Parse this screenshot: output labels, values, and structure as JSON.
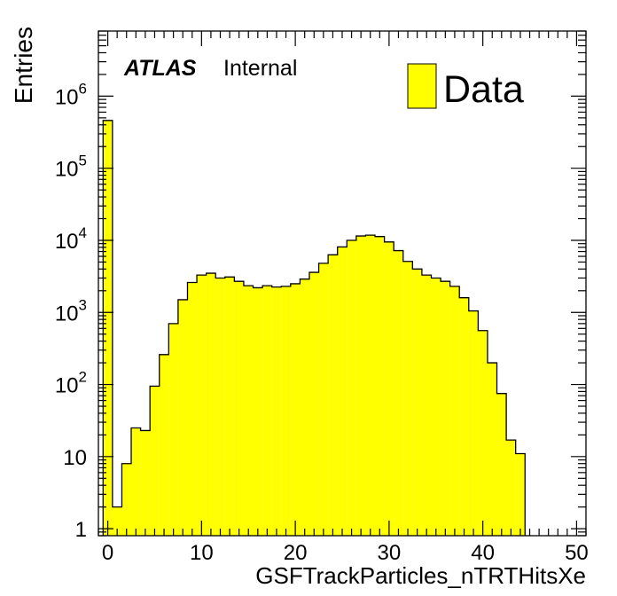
{
  "chart_data": {
    "type": "bar",
    "xlabel": "GSFTrackParticles_nTRTHitsXe",
    "ylabel": "Entries",
    "xlim": [
      -1,
      51
    ],
    "ylim": [
      0.8,
      8000000
    ],
    "log_y": true,
    "grid": false,
    "legend": {
      "position": "top-right",
      "entries": [
        "Data"
      ]
    },
    "annotations": {
      "atlas": "ATLAS",
      "status": "Internal"
    },
    "x_ticks": [
      "0",
      "10",
      "20",
      "30",
      "40",
      "50"
    ],
    "y_ticks": [
      {
        "label": "1",
        "value": 1
      },
      {
        "label": "10",
        "value": 10
      },
      {
        "label": "10",
        "exp": "2",
        "value": 100
      },
      {
        "label": "10",
        "exp": "3",
        "value": 1000
      },
      {
        "label": "10",
        "exp": "4",
        "value": 10000
      },
      {
        "label": "10",
        "exp": "5",
        "value": 100000
      },
      {
        "label": "10",
        "exp": "6",
        "value": 1000000
      }
    ],
    "bin_edges": [
      -0.5,
      44.5
    ],
    "bin_width": 1,
    "series": [
      {
        "name": "Data",
        "color": "#ffff00",
        "values": [
          460000,
          2,
          8,
          25,
          23,
          95,
          260,
          700,
          1500,
          2600,
          3300,
          3500,
          3000,
          3100,
          2700,
          2350,
          2200,
          2350,
          2250,
          2300,
          2500,
          2900,
          3600,
          4800,
          6300,
          8100,
          10000,
          11500,
          11800,
          11300,
          9500,
          7200,
          5100,
          4000,
          3300,
          3000,
          2700,
          2300,
          1600,
          1050,
          560,
          200,
          75,
          17,
          11
        ]
      }
    ]
  }
}
